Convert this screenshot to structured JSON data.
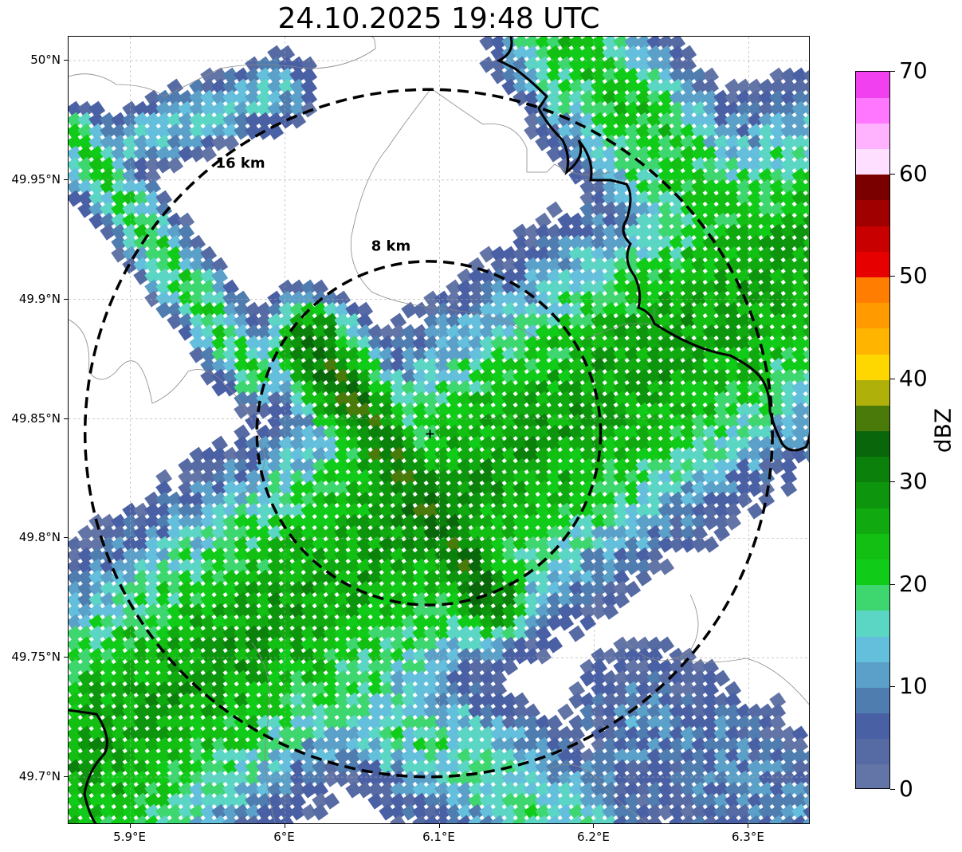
{
  "title": "24.10.2025 19:48 UTC",
  "map": {
    "lat_axis": {
      "ticks": [
        {
          "label": "50°N",
          "value": 50.0
        },
        {
          "label": "49.95°N",
          "value": 49.95
        },
        {
          "label": "49.9°N",
          "value": 49.9
        },
        {
          "label": "49.85°N",
          "value": 49.85
        },
        {
          "label": "49.8°N",
          "value": 49.8
        },
        {
          "label": "49.75°N",
          "value": 49.75
        },
        {
          "label": "49.7°N",
          "value": 49.7
        }
      ],
      "range": [
        49.68,
        50.01
      ]
    },
    "lon_axis": {
      "ticks": [
        {
          "label": "5.9°E",
          "value": 5.9
        },
        {
          "label": "6°E",
          "value": 6.0
        },
        {
          "label": "6.1°E",
          "value": 6.1
        },
        {
          "label": "6.2°E",
          "value": 6.2
        },
        {
          "label": "6.3°E",
          "value": 6.3
        }
      ],
      "range": [
        5.86,
        6.34
      ]
    },
    "grid": true,
    "radar_site": {
      "lon": 6.093,
      "lat": 49.844
    },
    "range_rings": [
      {
        "label": "8 km",
        "km": 8
      },
      {
        "label": "16 km",
        "km": 16
      }
    ]
  },
  "colorbar": {
    "unit": "dBZ",
    "min": 0,
    "max": 70,
    "tick_labels": [
      "0",
      "10",
      "20",
      "30",
      "40",
      "50",
      "60",
      "70"
    ],
    "colors": [
      "#6374a6",
      "#566aa3",
      "#4a60a5",
      "#4f7db0",
      "#5aa0c8",
      "#63bfdc",
      "#5cd6c4",
      "#3ed66e",
      "#10cc19",
      "#12bf12",
      "#10aa10",
      "#0d950d",
      "#0b800b",
      "#0a660a",
      "#4a7a0a",
      "#b0b00a",
      "#ffd700",
      "#ffb400",
      "#ff9a00",
      "#ff7d00",
      "#e60000",
      "#c80000",
      "#a00000",
      "#7a0000",
      "#ffdfff",
      "#ffb3ff",
      "#ff77ff",
      "#f040f0"
    ]
  }
}
